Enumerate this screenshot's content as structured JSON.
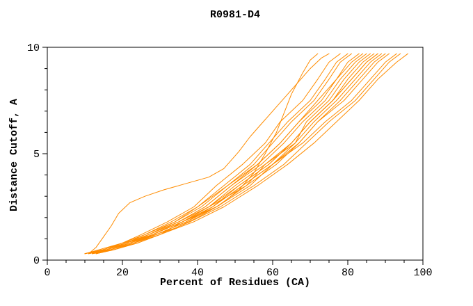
{
  "page": {
    "background": "#ffffff"
  },
  "chart_data": {
    "type": "line",
    "title": "R0981-D4",
    "xlabel": "Percent of Residues (CA)",
    "ylabel": "Distance Cutoff, A",
    "xlim": [
      0,
      100
    ],
    "ylim": [
      0,
      10
    ],
    "x_ticks": [
      0,
      20,
      40,
      60,
      80,
      100
    ],
    "y_ticks": [
      0,
      5,
      10
    ],
    "x_minor_step": 5,
    "y_minor_step": 1,
    "grid": false,
    "legend": "none",
    "line_color": "#ff8c00",
    "axis_color": "#000000",
    "series": [
      {
        "points": [
          [
            11,
            0.3
          ],
          [
            13,
            0.6
          ],
          [
            15,
            1.1
          ],
          [
            17,
            1.6
          ],
          [
            19,
            2.2
          ],
          [
            22,
            2.7
          ],
          [
            26,
            3.0
          ],
          [
            31,
            3.3
          ],
          [
            37,
            3.6
          ],
          [
            43,
            3.9
          ],
          [
            47,
            4.3
          ],
          [
            49,
            4.7
          ],
          [
            51,
            5.1
          ],
          [
            54,
            5.8
          ],
          [
            58,
            6.6
          ],
          [
            62,
            7.4
          ],
          [
            66,
            8.2
          ],
          [
            70,
            9.0
          ],
          [
            73,
            9.5
          ],
          [
            75,
            9.7
          ]
        ]
      },
      {
        "points": [
          [
            10,
            0.3
          ],
          [
            14,
            0.5
          ],
          [
            20,
            0.8
          ],
          [
            27,
            1.1
          ],
          [
            34,
            1.5
          ],
          [
            40,
            2.0
          ],
          [
            46,
            2.6
          ],
          [
            51,
            3.3
          ],
          [
            55,
            4.1
          ],
          [
            58,
            5.0
          ],
          [
            61,
            6.0
          ],
          [
            63,
            6.9
          ],
          [
            65,
            7.8
          ],
          [
            68,
            8.8
          ],
          [
            70,
            9.4
          ],
          [
            72,
            9.7
          ]
        ]
      },
      {
        "points": [
          [
            10,
            0.3
          ],
          [
            15,
            0.5
          ],
          [
            20,
            0.8
          ],
          [
            25,
            1.2
          ],
          [
            32,
            1.8
          ],
          [
            39,
            2.5
          ],
          [
            45,
            3.5
          ],
          [
            52,
            4.5
          ],
          [
            58,
            5.5
          ],
          [
            62,
            6.5
          ],
          [
            68,
            7.5
          ],
          [
            72,
            8.5
          ],
          [
            75,
            9.3
          ],
          [
            78,
            9.7
          ]
        ]
      },
      {
        "points": [
          [
            11,
            0.3
          ],
          [
            16,
            0.5
          ],
          [
            21,
            0.8
          ],
          [
            26,
            1.2
          ],
          [
            33,
            1.8
          ],
          [
            40,
            2.5
          ],
          [
            47,
            3.5
          ],
          [
            54,
            4.5
          ],
          [
            59,
            5.5
          ],
          [
            64,
            6.5
          ],
          [
            70,
            7.5
          ],
          [
            74,
            8.5
          ],
          [
            77,
            9.3
          ],
          [
            80,
            9.7
          ]
        ]
      },
      {
        "points": [
          [
            12,
            0.3
          ],
          [
            17,
            0.5
          ],
          [
            22,
            0.8
          ],
          [
            27,
            1.2
          ],
          [
            34,
            1.8
          ],
          [
            41,
            2.5
          ],
          [
            48,
            3.5
          ],
          [
            55,
            4.5
          ],
          [
            60,
            5.5
          ],
          [
            65,
            6.5
          ],
          [
            71,
            7.5
          ],
          [
            75,
            8.5
          ],
          [
            78,
            9.3
          ],
          [
            81,
            9.7
          ]
        ]
      },
      {
        "points": [
          [
            13,
            0.3
          ],
          [
            18,
            0.5
          ],
          [
            23,
            0.8
          ],
          [
            28,
            1.2
          ],
          [
            35,
            1.8
          ],
          [
            42,
            2.5
          ],
          [
            49,
            3.5
          ],
          [
            56,
            4.5
          ],
          [
            62,
            5.5
          ],
          [
            67,
            6.5
          ],
          [
            72,
            7.5
          ],
          [
            77,
            8.5
          ],
          [
            80,
            9.3
          ],
          [
            83,
            9.7
          ]
        ]
      },
      {
        "points": [
          [
            10,
            0.3
          ],
          [
            15,
            0.5
          ],
          [
            20,
            0.8
          ],
          [
            26,
            1.2
          ],
          [
            34,
            1.8
          ],
          [
            40,
            2.5
          ],
          [
            48,
            3.5
          ],
          [
            56,
            4.5
          ],
          [
            62,
            5.5
          ],
          [
            67,
            6.5
          ],
          [
            73,
            7.5
          ],
          [
            77,
            8.5
          ],
          [
            81,
            9.3
          ],
          [
            84,
            9.7
          ]
        ]
      },
      {
        "points": [
          [
            11,
            0.3
          ],
          [
            16,
            0.5
          ],
          [
            21,
            0.8
          ],
          [
            27,
            1.2
          ],
          [
            35,
            1.8
          ],
          [
            42,
            2.5
          ],
          [
            49,
            3.5
          ],
          [
            57,
            4.5
          ],
          [
            63,
            5.5
          ],
          [
            68,
            6.5
          ],
          [
            74,
            7.5
          ],
          [
            78,
            8.5
          ],
          [
            82,
            9.3
          ],
          [
            85,
            9.7
          ]
        ]
      },
      {
        "points": [
          [
            12,
            0.3
          ],
          [
            17,
            0.5
          ],
          [
            22,
            0.8
          ],
          [
            28,
            1.2
          ],
          [
            36,
            1.8
          ],
          [
            43,
            2.5
          ],
          [
            50,
            3.5
          ],
          [
            58,
            4.5
          ],
          [
            66,
            5.5
          ],
          [
            69,
            6.5
          ],
          [
            75,
            7.5
          ],
          [
            79,
            8.5
          ],
          [
            83,
            9.3
          ],
          [
            86,
            9.7
          ]
        ]
      },
      {
        "points": [
          [
            13,
            0.3
          ],
          [
            18,
            0.5
          ],
          [
            23,
            0.8
          ],
          [
            29,
            1.2
          ],
          [
            37,
            1.8
          ],
          [
            44,
            2.5
          ],
          [
            51,
            3.5
          ],
          [
            59,
            4.5
          ],
          [
            65,
            5.5
          ],
          [
            70,
            6.5
          ],
          [
            76,
            7.5
          ],
          [
            80,
            8.5
          ],
          [
            84,
            9.3
          ],
          [
            87,
            9.7
          ]
        ]
      },
      {
        "points": [
          [
            10,
            0.3
          ],
          [
            15,
            0.5
          ],
          [
            21,
            0.8
          ],
          [
            27,
            1.2
          ],
          [
            35,
            1.8
          ],
          [
            43,
            2.5
          ],
          [
            53,
            3.5
          ],
          [
            58,
            4.5
          ],
          [
            65,
            5.5
          ],
          [
            70,
            6.5
          ],
          [
            76,
            7.5
          ],
          [
            81,
            8.5
          ],
          [
            85,
            9.3
          ],
          [
            88,
            9.7
          ]
        ]
      },
      {
        "points": [
          [
            11,
            0.3
          ],
          [
            16,
            0.5
          ],
          [
            22,
            0.8
          ],
          [
            28,
            1.2
          ],
          [
            36,
            1.8
          ],
          [
            43,
            2.5
          ],
          [
            51,
            3.5
          ],
          [
            59,
            4.5
          ],
          [
            65,
            5.5
          ],
          [
            70,
            6.5
          ],
          [
            76,
            7.5
          ],
          [
            81,
            8.5
          ],
          [
            85,
            9.3
          ],
          [
            88,
            9.7
          ]
        ]
      },
      {
        "points": [
          [
            12,
            0.3
          ],
          [
            17,
            0.5
          ],
          [
            23,
            0.8
          ],
          [
            29,
            1.2
          ],
          [
            37,
            1.8
          ],
          [
            44,
            2.5
          ],
          [
            52,
            3.5
          ],
          [
            60,
            4.5
          ],
          [
            66,
            5.5
          ],
          [
            71,
            6.5
          ],
          [
            77,
            7.5
          ],
          [
            82,
            8.5
          ],
          [
            86,
            9.3
          ],
          [
            89,
            9.7
          ]
        ]
      },
      {
        "points": [
          [
            13,
            0.3
          ],
          [
            18,
            0.5
          ],
          [
            24,
            0.8
          ],
          [
            30,
            1.2
          ],
          [
            36,
            1.8
          ],
          [
            45,
            2.5
          ],
          [
            53,
            3.5
          ],
          [
            61,
            4.5
          ],
          [
            67,
            5.5
          ],
          [
            72,
            6.5
          ],
          [
            78,
            7.5
          ],
          [
            83,
            8.5
          ],
          [
            87,
            9.3
          ],
          [
            90,
            9.7
          ]
        ]
      },
      {
        "points": [
          [
            10,
            0.3
          ],
          [
            16,
            0.5
          ],
          [
            21,
            0.8
          ],
          [
            28,
            1.2
          ],
          [
            36,
            1.8
          ],
          [
            44,
            2.5
          ],
          [
            52,
            3.5
          ],
          [
            60,
            4.5
          ],
          [
            67,
            5.5
          ],
          [
            72,
            6.5
          ],
          [
            79,
            7.5
          ],
          [
            84,
            8.5
          ],
          [
            88,
            9.3
          ],
          [
            91,
            9.7
          ]
        ]
      },
      {
        "points": [
          [
            11,
            0.3
          ],
          [
            17,
            0.5
          ],
          [
            22,
            0.8
          ],
          [
            29,
            1.2
          ],
          [
            37,
            1.8
          ],
          [
            45,
            2.5
          ],
          [
            54,
            3.5
          ],
          [
            60,
            4.5
          ],
          [
            68,
            5.5
          ],
          [
            74,
            6.5
          ],
          [
            81,
            7.5
          ],
          [
            86,
            8.5
          ],
          [
            90,
            9.3
          ],
          [
            93,
            9.7
          ]
        ]
      },
      {
        "points": [
          [
            12,
            0.3
          ],
          [
            18,
            0.5
          ],
          [
            23,
            0.8
          ],
          [
            30,
            1.2
          ],
          [
            38,
            1.8
          ],
          [
            46,
            2.5
          ],
          [
            55,
            3.5
          ],
          [
            63,
            4.5
          ],
          [
            69,
            5.5
          ],
          [
            75,
            6.5
          ],
          [
            82,
            7.5
          ],
          [
            87,
            8.5
          ],
          [
            91,
            9.3
          ],
          [
            94,
            9.7
          ]
        ]
      },
      {
        "points": [
          [
            12,
            0.3
          ],
          [
            18,
            0.5
          ],
          [
            24,
            0.8
          ],
          [
            30,
            1.2
          ],
          [
            39,
            1.8
          ],
          [
            47,
            2.5
          ],
          [
            56,
            3.5
          ],
          [
            64,
            4.5
          ],
          [
            71,
            5.5
          ],
          [
            77,
            6.5
          ],
          [
            83,
            7.5
          ],
          [
            88,
            8.5
          ],
          [
            93,
            9.3
          ],
          [
            96,
            9.7
          ]
        ]
      }
    ]
  }
}
